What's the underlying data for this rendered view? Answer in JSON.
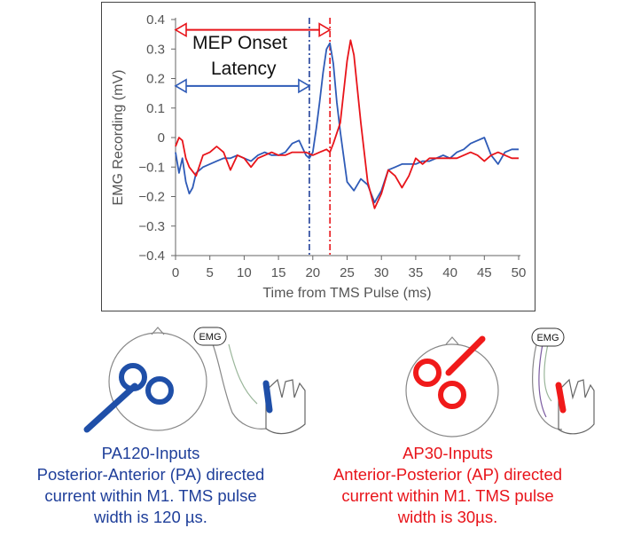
{
  "chart_data": {
    "type": "line",
    "xlabel": "Time from TMS Pulse (ms)",
    "ylabel": "EMG Recording (mV)",
    "xlim": [
      0,
      50
    ],
    "ylim": [
      -0.4,
      0.4
    ],
    "xticks": [
      "0",
      "5",
      "10",
      "15",
      "20",
      "25",
      "30",
      "35",
      "40",
      "45",
      "50"
    ],
    "yticks": [
      "0.4",
      "0.3",
      "0.2",
      "0.1",
      "0",
      "−0.1",
      "−0.2",
      "−0.3",
      "−0.4"
    ],
    "grid": false,
    "series": [
      {
        "color": "#2f5bb7",
        "x": [
          0,
          0.5,
          1,
          1.5,
          2,
          2.5,
          3,
          4,
          5,
          6,
          7,
          8,
          9,
          10,
          11,
          12,
          13,
          14,
          15,
          16,
          17,
          18,
          19,
          19.5,
          20,
          20.5,
          21,
          21.5,
          22,
          22.5,
          23,
          23.5,
          24,
          25,
          26,
          27,
          28,
          29,
          30,
          31,
          32,
          33,
          34,
          35,
          36,
          37,
          38,
          39,
          40,
          41,
          42,
          43,
          44,
          45,
          46,
          47,
          48,
          49,
          50
        ],
        "y": [
          -0.05,
          -0.12,
          -0.07,
          -0.15,
          -0.19,
          -0.17,
          -0.12,
          -0.1,
          -0.09,
          -0.08,
          -0.07,
          -0.07,
          -0.06,
          -0.07,
          -0.08,
          -0.06,
          -0.05,
          -0.06,
          -0.06,
          -0.05,
          -0.02,
          -0.01,
          -0.06,
          -0.07,
          -0.05,
          0.03,
          0.12,
          0.22,
          0.3,
          0.32,
          0.25,
          0.12,
          0.02,
          -0.15,
          -0.18,
          -0.14,
          -0.16,
          -0.22,
          -0.18,
          -0.11,
          -0.1,
          -0.09,
          -0.09,
          -0.09,
          -0.08,
          -0.08,
          -0.07,
          -0.06,
          -0.07,
          -0.05,
          -0.04,
          -0.02,
          -0.01,
          0.0,
          -0.06,
          -0.09,
          -0.05,
          -0.04,
          -0.04
        ]
      },
      {
        "color": "#e8141a",
        "x": [
          0,
          0.5,
          1,
          1.5,
          2,
          3,
          4,
          5,
          6,
          7,
          8,
          9,
          10,
          11,
          12,
          13,
          14,
          15,
          16,
          17,
          18,
          19,
          20,
          21,
          22,
          22.5,
          23,
          24,
          25,
          25.5,
          26,
          27,
          28,
          29,
          30,
          31,
          32,
          33,
          34,
          35,
          36,
          37,
          38,
          39,
          40,
          41,
          42,
          43,
          44,
          45,
          46,
          47,
          48,
          49,
          50
        ],
        "y": [
          -0.03,
          0.0,
          -0.01,
          -0.07,
          -0.1,
          -0.13,
          -0.06,
          -0.05,
          -0.03,
          -0.05,
          -0.11,
          -0.06,
          -0.07,
          -0.1,
          -0.07,
          -0.06,
          -0.05,
          -0.06,
          -0.06,
          -0.05,
          -0.05,
          -0.05,
          -0.06,
          -0.05,
          -0.04,
          -0.05,
          -0.02,
          0.05,
          0.26,
          0.33,
          0.28,
          0.05,
          -0.15,
          -0.24,
          -0.19,
          -0.11,
          -0.13,
          -0.17,
          -0.13,
          -0.07,
          -0.09,
          -0.07,
          -0.07,
          -0.07,
          -0.07,
          -0.07,
          -0.06,
          -0.05,
          -0.06,
          -0.08,
          -0.06,
          -0.05,
          -0.06,
          -0.07,
          -0.07
        ]
      }
    ],
    "vlines": [
      {
        "x": 19.5,
        "color": "#1f3f9a",
        "style": "dash-dot"
      },
      {
        "x": 22.5,
        "color": "#e8141a",
        "style": "dash-dot"
      }
    ],
    "arrows": [
      {
        "from": 0,
        "to": 22.5,
        "y": 0.365,
        "color": "#e8141a"
      },
      {
        "from": 0,
        "to": 19.5,
        "y": 0.175,
        "color": "#2f5bb7"
      }
    ],
    "annotation": [
      "MEP Onset",
      "Latency"
    ]
  },
  "panels": {
    "left": {
      "emg_tag": "EMG",
      "coil_color": "#1f4fa8",
      "caption": [
        "PA120-Inputs",
        "Posterior-Anterior (PA) directed",
        "current within M1. TMS pulse",
        "width is 120 µs."
      ]
    },
    "right": {
      "emg_tag": "EMG",
      "coil_color": "#f01a1a",
      "caption": [
        "AP30-Inputs",
        "Anterior-Posterior (AP) directed",
        "current within M1. TMS pulse",
        "width is 30µs."
      ]
    }
  }
}
